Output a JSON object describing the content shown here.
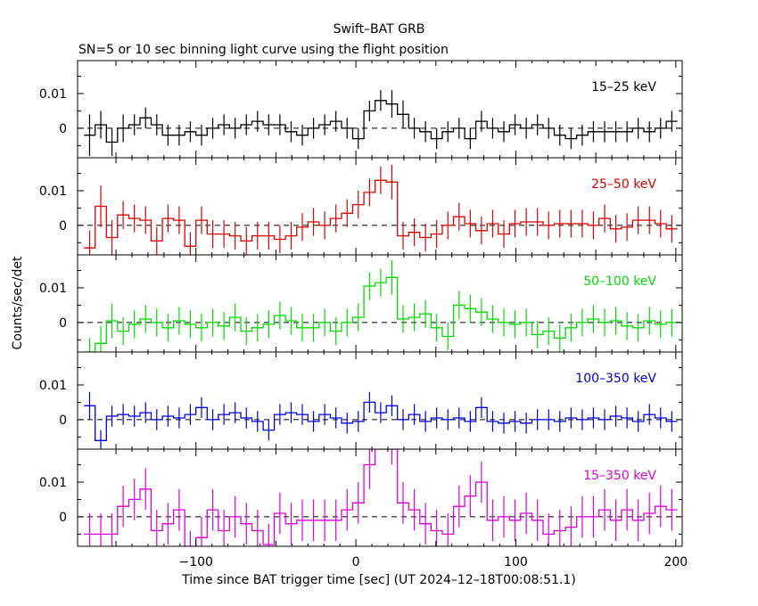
{
  "header": {
    "title": "Swift–BAT GRB",
    "subtitle": "SN=5 or 10 sec binning light curve using the flight position"
  },
  "axes": {
    "ylabel": "Counts/sec/det",
    "xlabel": "Time since BAT trigger time [sec] (UT 2024–12–18T00:08:51.1)"
  },
  "chart_data": {
    "type": "line",
    "xlim": [
      -174,
      204
    ],
    "ylim": [
      -0.0085,
      0.0195
    ],
    "x_ticks": [
      -100,
      0,
      100,
      200
    ],
    "x_tick_labels": [
      "−100",
      "0",
      "100",
      "200"
    ],
    "y_ticks": [
      0,
      0.01
    ],
    "y_tick_labels": [
      "0",
      "0.01"
    ],
    "zero_line": "dashed",
    "grid": false,
    "bin_edges": [
      -170,
      -163,
      -156,
      -149,
      -142,
      -135,
      -128,
      -121,
      -114,
      -107,
      -100,
      -93,
      -86,
      -79,
      -72,
      -65,
      -58,
      -51,
      -44,
      -37,
      -30,
      -23,
      -16,
      -9,
      -2,
      5,
      12,
      19,
      26,
      33,
      40,
      47,
      54,
      61,
      68,
      75,
      82,
      89,
      96,
      103,
      110,
      117,
      124,
      131,
      138,
      145,
      152,
      159,
      166,
      173,
      180,
      187,
      194,
      201
    ],
    "panels": [
      {
        "label": "15–25 keV",
        "color": "#000000",
        "values": [
          -0.002,
          0.001,
          -0.004,
          0.0,
          0.001,
          0.003,
          0.001,
          -0.002,
          -0.002,
          -0.001,
          -0.002,
          0.0,
          0.001,
          0.0,
          0.001,
          0.002,
          0.001,
          0.001,
          -0.001,
          -0.002,
          0.0,
          0.001,
          0.002,
          0.0,
          -0.003,
          0.005,
          0.008,
          0.007,
          0.004,
          0.0,
          -0.001,
          -0.003,
          -0.001,
          0.0,
          -0.003,
          0.002,
          0.0,
          -0.001,
          0.001,
          0.0,
          0.001,
          0.0,
          -0.002,
          -0.003,
          -0.002,
          -0.001,
          -0.001,
          -0.001,
          -0.001,
          0.0,
          -0.001,
          0.0,
          0.002
        ],
        "errors": [
          0.006,
          0.004,
          0.004,
          0.004,
          0.003,
          0.003,
          0.003,
          0.003,
          0.003,
          0.003,
          0.003,
          0.003,
          0.003,
          0.003,
          0.003,
          0.003,
          0.003,
          0.003,
          0.003,
          0.003,
          0.003,
          0.003,
          0.003,
          0.003,
          0.003,
          0.003,
          0.003,
          0.004,
          0.004,
          0.003,
          0.003,
          0.003,
          0.003,
          0.003,
          0.003,
          0.003,
          0.003,
          0.003,
          0.003,
          0.003,
          0.003,
          0.003,
          0.003,
          0.003,
          0.003,
          0.003,
          0.003,
          0.003,
          0.003,
          0.003,
          0.003,
          0.003,
          0.003
        ]
      },
      {
        "label": "25–50 keV",
        "color": "#dd0000",
        "values": [
          -0.0065,
          0.0055,
          -0.0035,
          0.003,
          0.002,
          0.0015,
          -0.0045,
          0.002,
          0.0015,
          -0.006,
          0.0015,
          -0.0025,
          -0.0025,
          -0.003,
          -0.0045,
          -0.003,
          -0.003,
          -0.004,
          -0.003,
          -0.0005,
          0.001,
          0.0,
          0.002,
          0.0035,
          0.006,
          0.0095,
          0.013,
          0.0125,
          -0.003,
          -0.002,
          -0.0035,
          -0.0025,
          0.0,
          0.0025,
          0.0005,
          -0.0015,
          0.0005,
          -0.0025,
          0.0005,
          0.001,
          0.001,
          0.0,
          0.0005,
          0.0005,
          0.0005,
          0.0,
          0.002,
          -0.001,
          -0.0005,
          0.0015,
          0.0015,
          0.0005,
          -0.001
        ],
        "errors": [
          0.005,
          0.006,
          0.005,
          0.004,
          0.004,
          0.004,
          0.004,
          0.004,
          0.004,
          0.004,
          0.004,
          0.004,
          0.004,
          0.004,
          0.004,
          0.004,
          0.004,
          0.004,
          0.004,
          0.004,
          0.004,
          0.004,
          0.004,
          0.004,
          0.004,
          0.004,
          0.004,
          0.005,
          0.004,
          0.004,
          0.004,
          0.004,
          0.004,
          0.004,
          0.004,
          0.004,
          0.004,
          0.004,
          0.004,
          0.004,
          0.004,
          0.004,
          0.004,
          0.004,
          0.004,
          0.004,
          0.004,
          0.004,
          0.004,
          0.004,
          0.004,
          0.004,
          0.004
        ]
      },
      {
        "label": "50–100 keV",
        "color": "#00dd00",
        "values": [
          -0.0095,
          -0.006,
          0.0005,
          -0.0025,
          -0.0005,
          0.001,
          0.0,
          -0.0015,
          0.0005,
          -0.0005,
          -0.0015,
          0.0,
          -0.001,
          0.0015,
          -0.0025,
          -0.0015,
          -0.0005,
          0.002,
          0.0005,
          -0.0015,
          -0.0015,
          0.0,
          -0.0025,
          0.0,
          0.0015,
          0.0105,
          0.0115,
          0.013,
          0.001,
          0.0015,
          0.0025,
          -0.0015,
          -0.004,
          0.005,
          0.004,
          0.003,
          0.001,
          0.0,
          -0.0005,
          0.0,
          -0.0035,
          -0.0025,
          -0.0045,
          -0.0015,
          0.0,
          0.001,
          0.0,
          0.0005,
          -0.001,
          -0.0015,
          0.0005,
          -0.0005,
          0.0
        ],
        "errors": [
          0.005,
          0.005,
          0.005,
          0.004,
          0.004,
          0.004,
          0.004,
          0.004,
          0.004,
          0.004,
          0.004,
          0.004,
          0.004,
          0.004,
          0.004,
          0.004,
          0.004,
          0.004,
          0.004,
          0.004,
          0.004,
          0.004,
          0.004,
          0.004,
          0.004,
          0.004,
          0.004,
          0.005,
          0.004,
          0.004,
          0.004,
          0.004,
          0.004,
          0.004,
          0.004,
          0.004,
          0.004,
          0.004,
          0.004,
          0.004,
          0.004,
          0.004,
          0.004,
          0.004,
          0.004,
          0.004,
          0.004,
          0.004,
          0.004,
          0.004,
          0.004,
          0.004,
          0.004
        ]
      },
      {
        "label": "100–350 keV",
        "color": "#0000dd",
        "values": [
          0.004,
          -0.006,
          0.001,
          0.0015,
          0.001,
          0.002,
          0.0,
          0.001,
          0.0005,
          0.0015,
          0.0035,
          0.0,
          0.0015,
          0.002,
          0.0005,
          -0.0005,
          -0.003,
          0.0015,
          0.002,
          0.0015,
          -0.0005,
          0.0015,
          0.0005,
          -0.001,
          -0.0005,
          0.005,
          0.002,
          0.004,
          0.0,
          0.0015,
          -0.0005,
          0.0005,
          0.0,
          0.0005,
          -0.0005,
          0.0035,
          -0.0005,
          -0.001,
          -0.0005,
          -0.001,
          0.0,
          0.0,
          -0.0005,
          0.0005,
          0.0,
          0.0005,
          0.0,
          0.001,
          0.0005,
          -0.0005,
          0.0015,
          0.0005,
          -0.0005
        ],
        "errors": [
          0.004,
          0.003,
          0.003,
          0.003,
          0.003,
          0.003,
          0.003,
          0.003,
          0.003,
          0.003,
          0.003,
          0.003,
          0.003,
          0.003,
          0.003,
          0.003,
          0.003,
          0.003,
          0.003,
          0.003,
          0.003,
          0.003,
          0.003,
          0.003,
          0.003,
          0.003,
          0.003,
          0.003,
          0.003,
          0.003,
          0.003,
          0.003,
          0.003,
          0.003,
          0.003,
          0.003,
          0.003,
          0.003,
          0.003,
          0.003,
          0.003,
          0.003,
          0.003,
          0.003,
          0.003,
          0.003,
          0.003,
          0.003,
          0.003,
          0.003,
          0.003,
          0.003,
          0.003
        ]
      },
      {
        "label": "15–350 keV",
        "color": "#dd00dd",
        "values": [
          -0.005,
          -0.005,
          -0.005,
          0.003,
          0.005,
          0.008,
          -0.004,
          -0.002,
          0.002,
          -0.01,
          -0.006,
          0.002,
          -0.004,
          0.0,
          -0.002,
          -0.004,
          -0.008,
          0.001,
          -0.002,
          -0.001,
          -0.001,
          -0.001,
          -0.001,
          0.002,
          0.004,
          0.015,
          0.028,
          0.022,
          0.004,
          0.002,
          -0.002,
          -0.004,
          -0.005,
          0.003,
          0.006,
          0.01,
          -0.001,
          0.0,
          -0.001,
          0.001,
          -0.001,
          -0.005,
          -0.004,
          -0.003,
          0.0,
          0.0,
          0.002,
          -0.001,
          0.002,
          -0.001,
          0.001,
          0.003,
          0.002
        ],
        "errors": [
          0.006,
          0.006,
          0.006,
          0.006,
          0.006,
          0.006,
          0.006,
          0.006,
          0.006,
          0.006,
          0.006,
          0.006,
          0.006,
          0.006,
          0.006,
          0.006,
          0.006,
          0.006,
          0.006,
          0.006,
          0.006,
          0.006,
          0.006,
          0.006,
          0.006,
          0.007,
          0.008,
          0.007,
          0.006,
          0.006,
          0.006,
          0.006,
          0.006,
          0.006,
          0.006,
          0.006,
          0.006,
          0.006,
          0.006,
          0.006,
          0.006,
          0.006,
          0.006,
          0.006,
          0.006,
          0.006,
          0.006,
          0.006,
          0.006,
          0.006,
          0.006,
          0.006,
          0.006
        ]
      }
    ]
  }
}
